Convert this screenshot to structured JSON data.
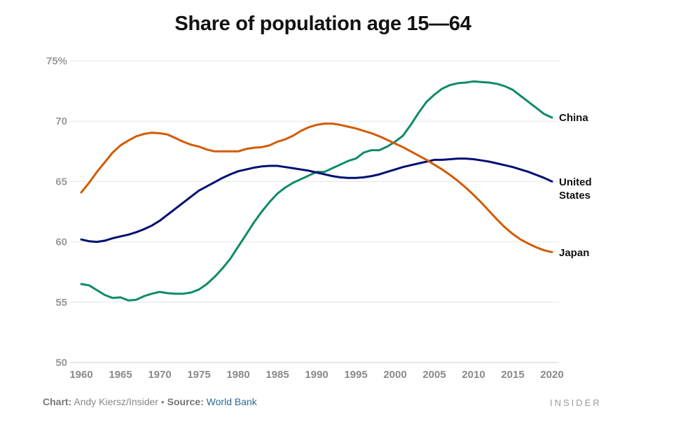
{
  "chart_data": {
    "type": "line",
    "title": "Share of population age 15—64",
    "xlabel": "",
    "ylabel": "",
    "xlim": [
      1960,
      2020
    ],
    "ylim": [
      50,
      75
    ],
    "y_ticks": [
      "75%",
      "70",
      "65",
      "60",
      "55",
      "50"
    ],
    "x_ticks": [
      "1960",
      "1965",
      "1970",
      "1975",
      "1980",
      "1985",
      "1990",
      "1995",
      "2000",
      "2005",
      "2010",
      "2015",
      "2020"
    ],
    "grid": true,
    "x": [
      1960,
      1961,
      1962,
      1963,
      1964,
      1965,
      1966,
      1967,
      1968,
      1969,
      1970,
      1971,
      1972,
      1973,
      1974,
      1975,
      1976,
      1977,
      1978,
      1979,
      1980,
      1981,
      1982,
      1983,
      1984,
      1985,
      1986,
      1987,
      1988,
      1989,
      1990,
      1991,
      1992,
      1993,
      1994,
      1995,
      1996,
      1997,
      1998,
      1999,
      2000,
      2001,
      2002,
      2003,
      2004,
      2005,
      2006,
      2007,
      2008,
      2009,
      2010,
      2011,
      2012,
      2013,
      2014,
      2015,
      2016,
      2017,
      2018,
      2019,
      2020
    ],
    "series": [
      {
        "name": "China",
        "color": "#0f8b6b",
        "values": [
          56.5,
          56.4,
          56.0,
          55.6,
          55.35,
          55.4,
          55.15,
          55.2,
          55.5,
          55.7,
          55.85,
          55.75,
          55.7,
          55.7,
          55.8,
          56.05,
          56.5,
          57.1,
          57.8,
          58.6,
          59.6,
          60.6,
          61.6,
          62.5,
          63.3,
          64.0,
          64.5,
          64.9,
          65.2,
          65.5,
          65.8,
          65.8,
          66.1,
          66.4,
          66.7,
          66.9,
          67.4,
          67.6,
          67.6,
          67.9,
          68.3,
          68.8,
          69.7,
          70.7,
          71.6,
          72.2,
          72.7,
          73.0,
          73.15,
          73.2,
          73.3,
          73.25,
          73.2,
          73.1,
          72.9,
          72.6,
          72.1,
          71.6,
          71.1,
          70.6,
          70.3
        ]
      },
      {
        "name": "United States",
        "color": "#000e73",
        "values": [
          60.2,
          60.05,
          60.0,
          60.1,
          60.3,
          60.45,
          60.6,
          60.8,
          61.05,
          61.35,
          61.75,
          62.25,
          62.75,
          63.25,
          63.75,
          64.25,
          64.6,
          64.95,
          65.3,
          65.6,
          65.85,
          66.0,
          66.15,
          66.25,
          66.3,
          66.3,
          66.2,
          66.1,
          66.0,
          65.9,
          65.75,
          65.6,
          65.45,
          65.35,
          65.3,
          65.3,
          65.35,
          65.45,
          65.6,
          65.8,
          66.0,
          66.2,
          66.35,
          66.5,
          66.65,
          66.8,
          66.8,
          66.85,
          66.9,
          66.9,
          66.85,
          66.75,
          66.65,
          66.5,
          66.35,
          66.2,
          66.0,
          65.8,
          65.55,
          65.3,
          65.0
        ]
      },
      {
        "name": "Japan",
        "color": "#d35b00",
        "values": [
          64.1,
          64.9,
          65.8,
          66.6,
          67.4,
          68.0,
          68.4,
          68.75,
          68.95,
          69.05,
          69.0,
          68.9,
          68.6,
          68.3,
          68.05,
          67.9,
          67.65,
          67.5,
          67.5,
          67.5,
          67.5,
          67.7,
          67.8,
          67.85,
          68.0,
          68.3,
          68.5,
          68.8,
          69.2,
          69.5,
          69.7,
          69.8,
          69.8,
          69.7,
          69.55,
          69.4,
          69.2,
          69.0,
          68.75,
          68.45,
          68.15,
          67.85,
          67.5,
          67.15,
          66.8,
          66.4,
          66.0,
          65.55,
          65.05,
          64.5,
          63.9,
          63.25,
          62.55,
          61.85,
          61.2,
          60.65,
          60.2,
          59.85,
          59.55,
          59.3,
          59.15
        ]
      }
    ],
    "labels": {
      "china": "China",
      "us_line1": "United",
      "us_line2": "States",
      "japan": "Japan"
    }
  },
  "footer": {
    "chart_label": "Chart:",
    "chart_author": "Andy Kiersz/Insider",
    "bullet": "•",
    "source_label": "Source:",
    "source_name": "World Bank"
  },
  "brand": "INSIDER"
}
